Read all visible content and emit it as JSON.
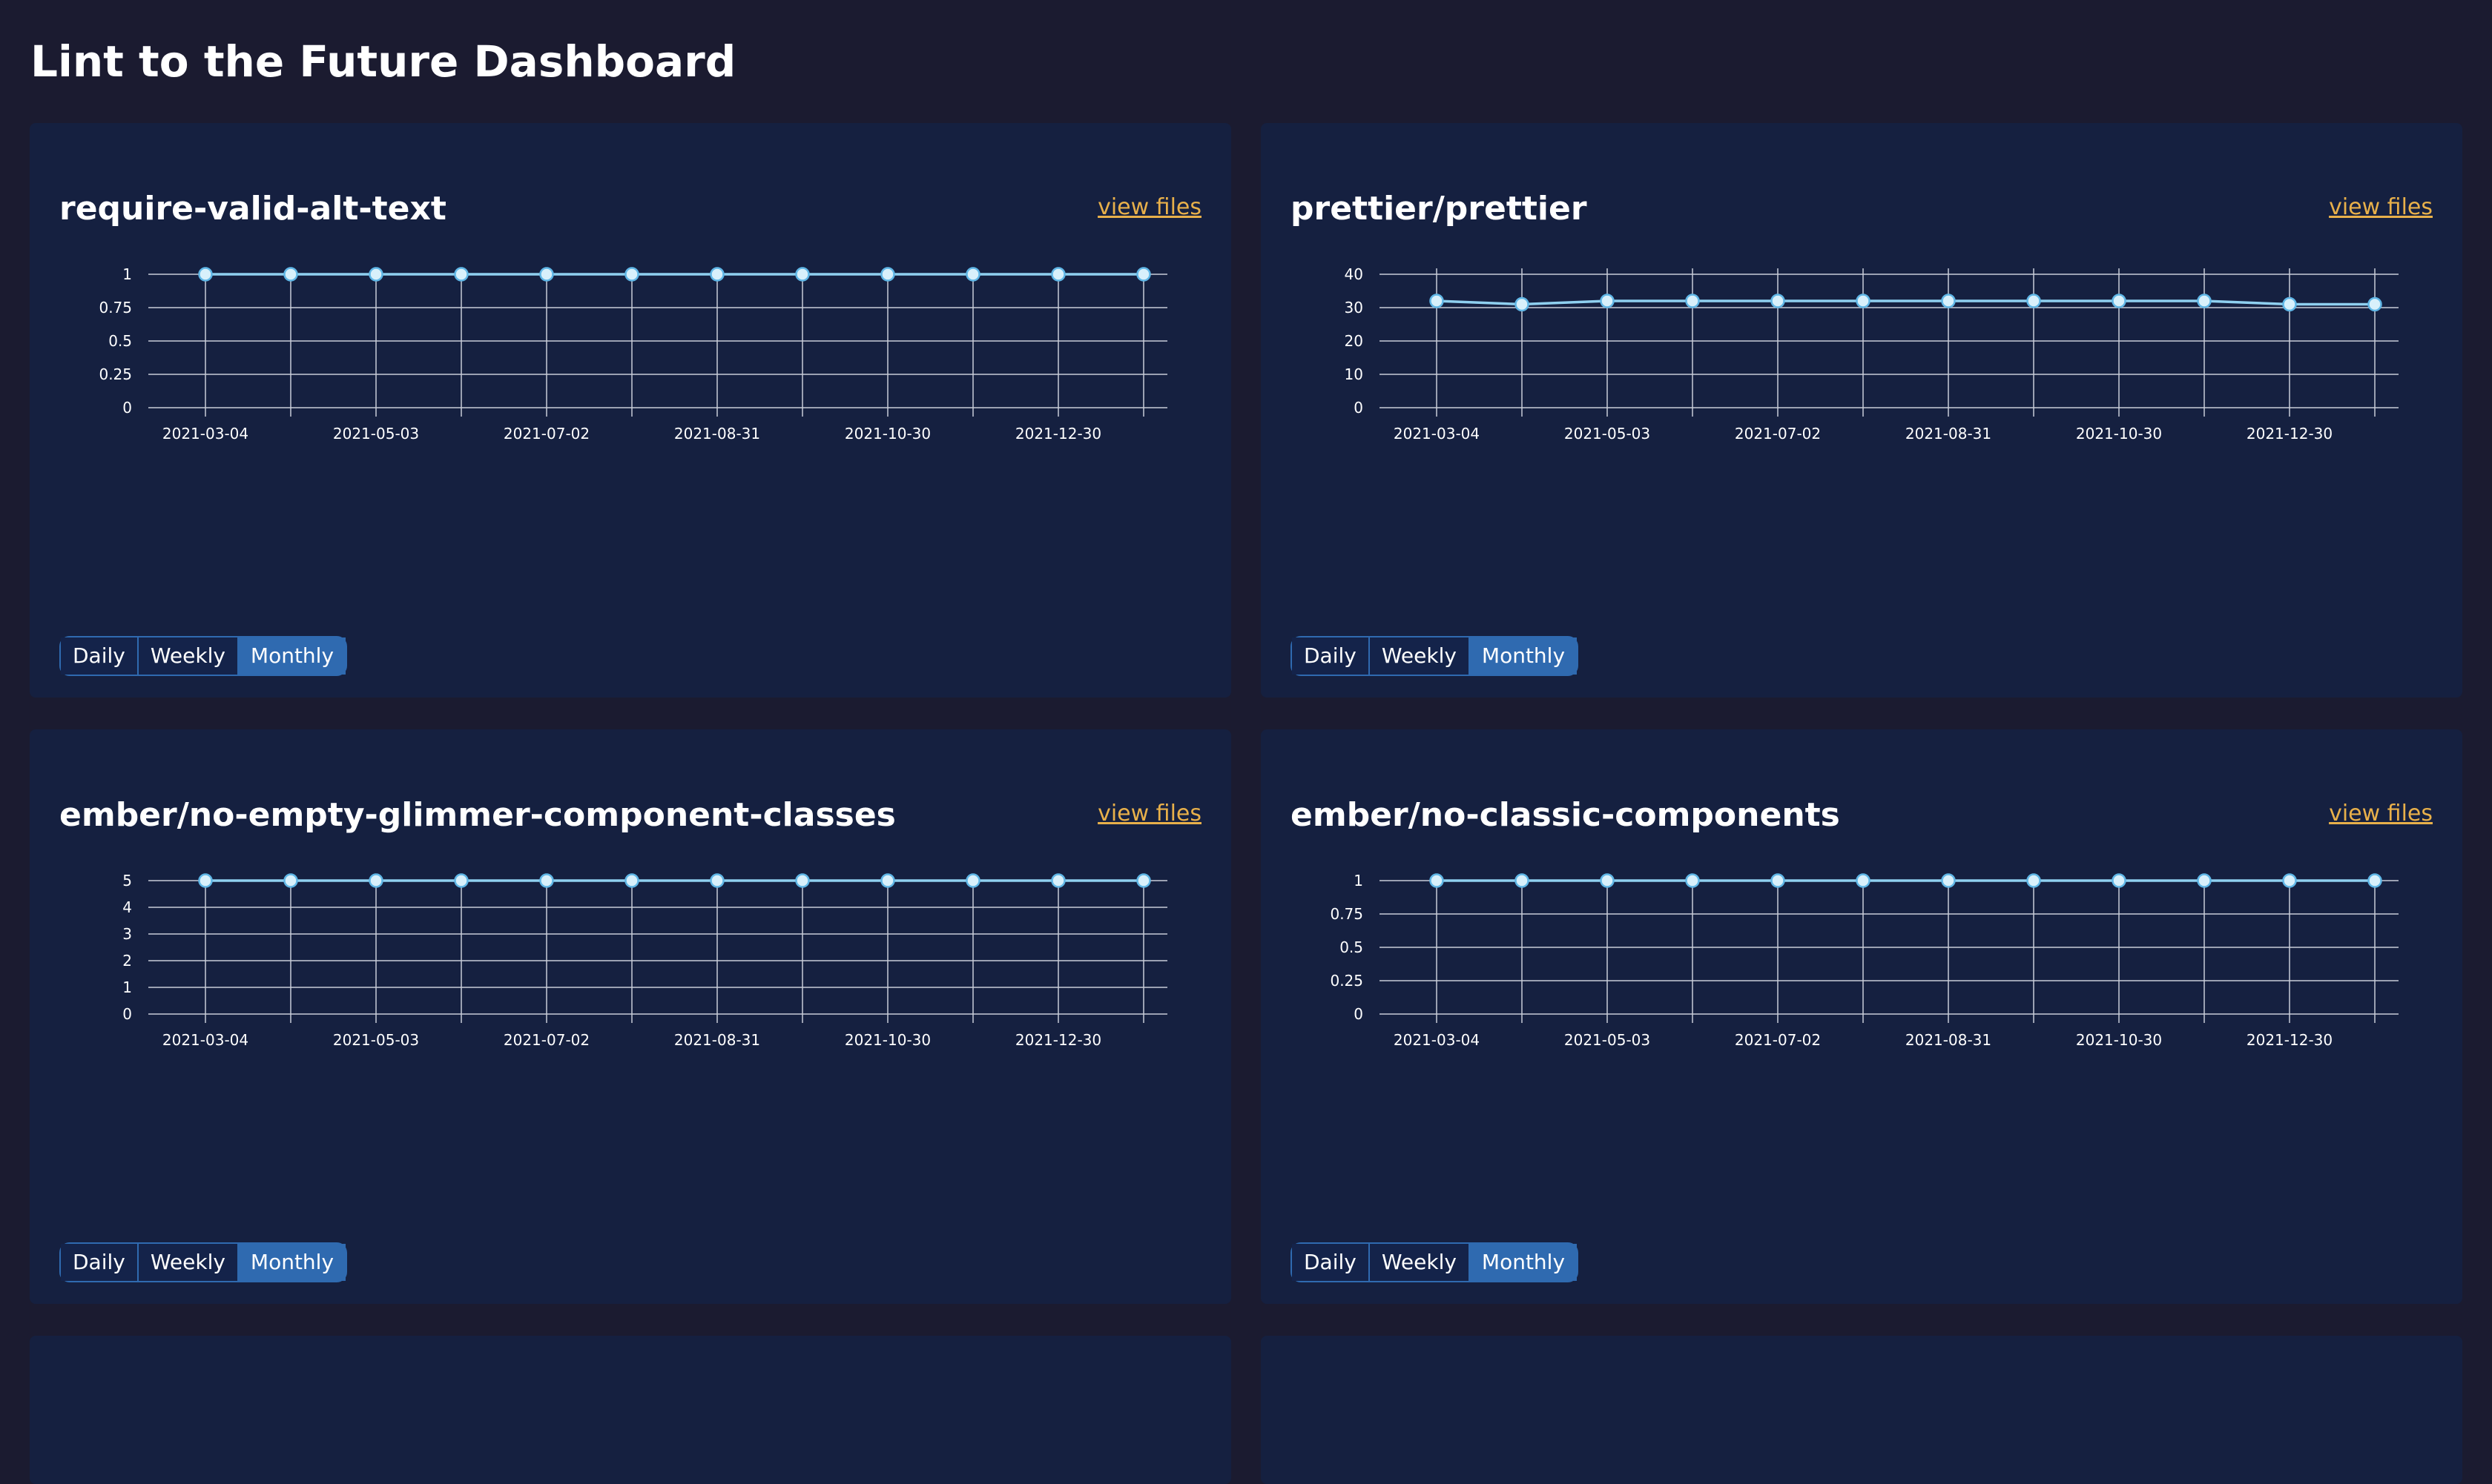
{
  "page": {
    "title": "Lint to the Future Dashboard"
  },
  "toggle": {
    "daily": "Daily",
    "weekly": "Weekly",
    "monthly": "Monthly",
    "selected": "Monthly"
  },
  "view_files_label": "view files",
  "colors": {
    "background": "#1b1b30",
    "card": "#152040",
    "line": "#8fd0f0",
    "link": "#e8b04a",
    "toggle_active": "#2f6ab0"
  },
  "chart_data": [
    {
      "type": "line",
      "title": "require-valid-alt-text",
      "x": [
        "2021-03-04",
        "2021-04-03",
        "2021-05-03",
        "2021-06-02",
        "2021-07-02",
        "2021-08-01",
        "2021-08-31",
        "2021-09-30",
        "2021-10-30",
        "2021-11-29",
        "2021-12-30",
        "2022-01-29"
      ],
      "x_tick_labels": [
        "2021-03-04",
        "2021-05-03",
        "2021-07-02",
        "2021-08-31",
        "2021-10-30",
        "2021-12-30"
      ],
      "y_ticks": [
        "0",
        "0.25",
        "0.5",
        "0.75",
        "1"
      ],
      "series": [
        {
          "values": [
            1,
            1,
            1,
            1,
            1,
            1,
            1,
            1,
            1,
            1,
            1,
            1
          ]
        }
      ],
      "ylim": [
        0,
        1
      ],
      "grid": true
    },
    {
      "type": "line",
      "title": "prettier/prettier",
      "x": [
        "2021-03-04",
        "2021-04-03",
        "2021-05-03",
        "2021-06-02",
        "2021-07-02",
        "2021-08-01",
        "2021-08-31",
        "2021-09-30",
        "2021-10-30",
        "2021-11-29",
        "2021-12-30",
        "2022-01-29"
      ],
      "x_tick_labels": [
        "2021-03-04",
        "2021-05-03",
        "2021-07-02",
        "2021-08-31",
        "2021-10-30",
        "2021-12-30"
      ],
      "y_ticks": [
        "0",
        "10",
        "20",
        "30",
        "40"
      ],
      "series": [
        {
          "values": [
            32,
            31,
            32,
            32,
            32,
            32,
            32,
            32,
            32,
            32,
            31,
            31
          ]
        }
      ],
      "ylim": [
        0,
        40
      ],
      "grid": true
    },
    {
      "type": "line",
      "title": "ember/no-empty-glimmer-component-classes",
      "x": [
        "2021-03-04",
        "2021-04-03",
        "2021-05-03",
        "2021-06-02",
        "2021-07-02",
        "2021-08-01",
        "2021-08-31",
        "2021-09-30",
        "2021-10-30",
        "2021-11-29",
        "2021-12-30",
        "2022-01-29"
      ],
      "x_tick_labels": [
        "2021-03-04",
        "2021-05-03",
        "2021-07-02",
        "2021-08-31",
        "2021-10-30",
        "2021-12-30"
      ],
      "y_ticks": [
        "0",
        "1",
        "2",
        "3",
        "4",
        "5"
      ],
      "series": [
        {
          "values": [
            5,
            5,
            5,
            5,
            5,
            5,
            5,
            5,
            5,
            5,
            5,
            5
          ]
        }
      ],
      "ylim": [
        0,
        5
      ],
      "grid": true
    },
    {
      "type": "line",
      "title": "ember/no-classic-components",
      "x": [
        "2021-03-04",
        "2021-04-03",
        "2021-05-03",
        "2021-06-02",
        "2021-07-02",
        "2021-08-01",
        "2021-08-31",
        "2021-09-30",
        "2021-10-30",
        "2021-11-29",
        "2021-12-30",
        "2022-01-29"
      ],
      "x_tick_labels": [
        "2021-03-04",
        "2021-05-03",
        "2021-07-02",
        "2021-08-31",
        "2021-10-30",
        "2021-12-30"
      ],
      "y_ticks": [
        "0",
        "0.25",
        "0.5",
        "0.75",
        "1"
      ],
      "series": [
        {
          "values": [
            1,
            1,
            1,
            1,
            1,
            1,
            1,
            1,
            1,
            1,
            1,
            1
          ]
        }
      ],
      "ylim": [
        0,
        1
      ],
      "grid": true
    }
  ]
}
